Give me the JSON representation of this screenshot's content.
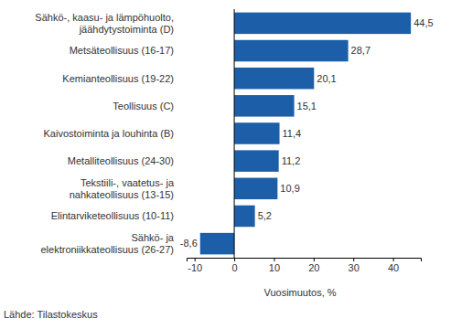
{
  "chart_data": {
    "type": "bar",
    "orientation": "horizontal",
    "categories": [
      "Sähkö-, kaasu- ja lämpöhuolto,\njäähdytystoiminta (D)",
      "Metsäteollisuus (16-17)",
      "Kemianteollisuus (19-22)",
      "Teollisuus (C)",
      "Kaivostoiminta ja louhinta (B)",
      "Metalliteollisuus (24-30)",
      "Tekstiili-, vaatetus- ja\nnahkateollisuus (13-15)",
      "Elintarviketeollisuus (10-11)",
      "Sähkö- ja\nelektroniikkateollisuus (26-27)"
    ],
    "values": [
      44.5,
      28.7,
      20.1,
      15.1,
      11.4,
      11.2,
      10.9,
      5.2,
      -8.6
    ],
    "value_labels": [
      "44,5",
      "28,7",
      "20,1",
      "15,1",
      "11,4",
      "11,2",
      "10,9",
      "5,2",
      "-8,6"
    ],
    "data_labels": true,
    "color": "#1c5fa8",
    "x_label": "Vuosimuutos, %",
    "caption": "Lähde: Tilastokeskus",
    "xlim": [
      -12,
      47
    ],
    "xticks": [
      -10,
      0,
      10,
      20,
      30,
      40
    ],
    "grid": false
  }
}
